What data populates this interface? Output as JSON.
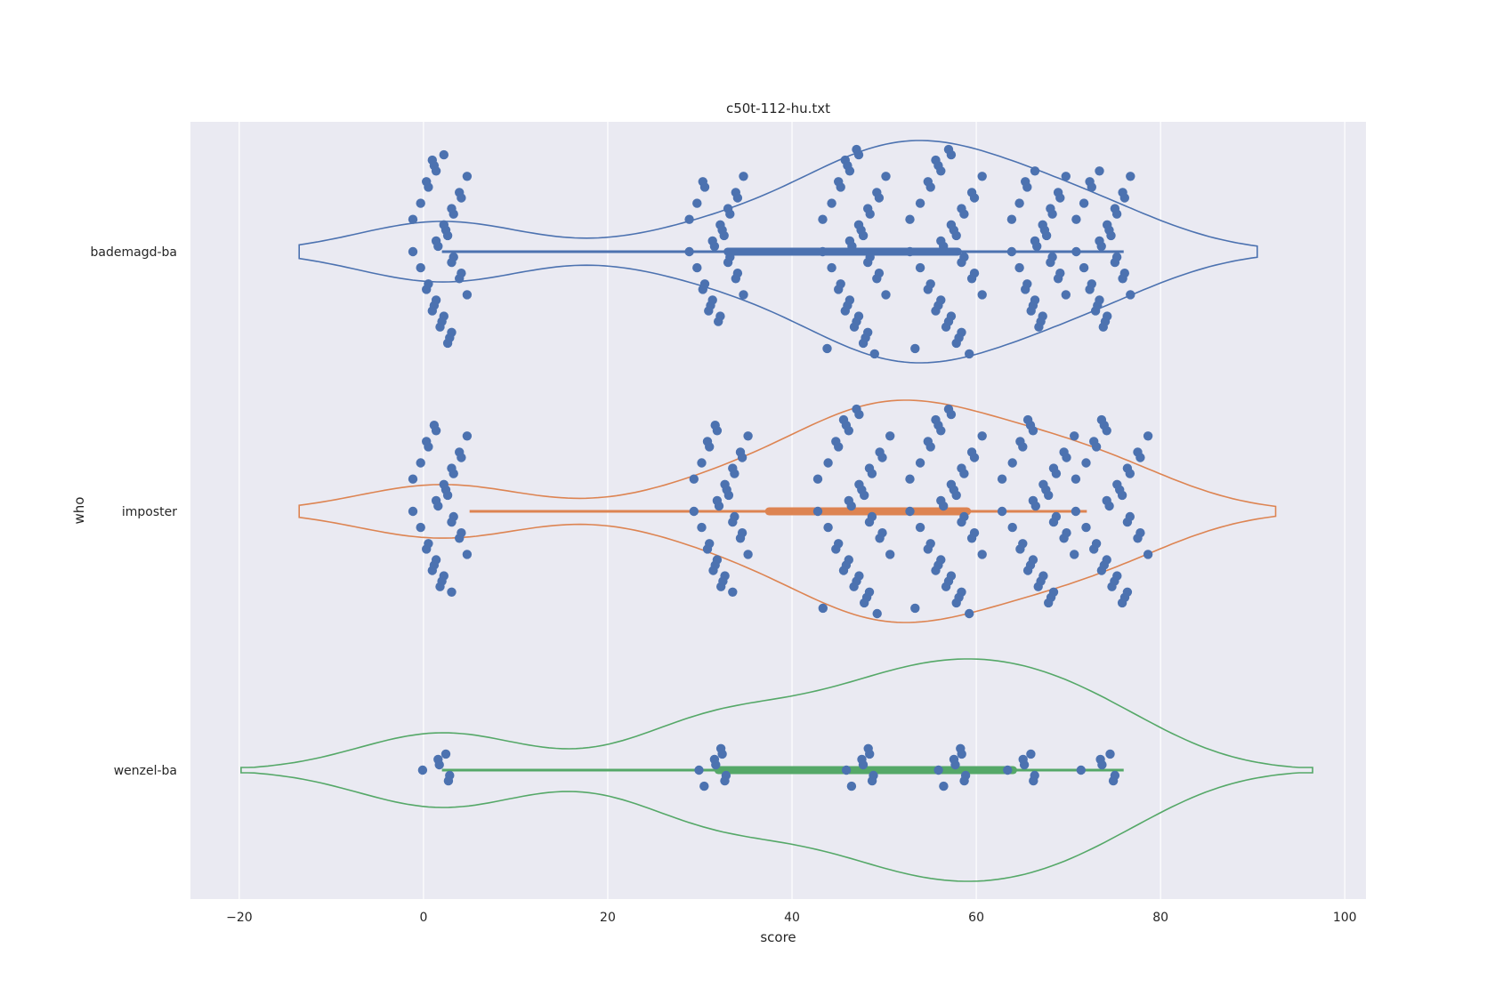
{
  "chart_data": {
    "type": "violin",
    "title": "c50t-112-hu.txt",
    "xlabel": "score",
    "ylabel": "who",
    "xlim": [
      -25.3,
      102.3
    ],
    "xticks": [
      -20,
      0,
      20,
      40,
      60,
      80,
      100
    ],
    "xtick_labels": [
      "−20",
      "0",
      "20",
      "40",
      "60",
      "80",
      "100"
    ],
    "grid": true,
    "categories": [
      "bademagd-ba",
      "imposter",
      "wenzel-ba"
    ],
    "colors": {
      "bademagd-ba": "#4c72b0",
      "imposter": "#dd8452",
      "wenzel-ba": "#55a868",
      "points": "#4c72b0",
      "plot_bg": "#eaeaf2",
      "grid": "#ffffff"
    },
    "series": [
      {
        "name": "bademagd-ba",
        "violin_extent": [
          -13.5,
          90.5
        ],
        "box": {
          "whisker_low": 2,
          "q1": 33,
          "median": 49,
          "q3": 58,
          "whisker_high": 76
        },
        "clusters": [
          {
            "center": 2,
            "spread": 3,
            "count": 36
          },
          {
            "center": 32,
            "spread": 3,
            "count": 28
          },
          {
            "center": 47,
            "spread": 3.5,
            "count": 70
          },
          {
            "center": 57,
            "spread": 4,
            "count": 70
          },
          {
            "center": 67,
            "spread": 3,
            "count": 30
          },
          {
            "center": 74,
            "spread": 3,
            "count": 30
          }
        ]
      },
      {
        "name": "imposter",
        "violin_extent": [
          -13.5,
          92.5
        ],
        "box": {
          "whisker_low": 5,
          "q1": 37.5,
          "median": 47,
          "q3": 59,
          "whisker_high": 72
        },
        "clusters": [
          {
            "center": 2,
            "spread": 3,
            "count": 32
          },
          {
            "center": 32.5,
            "spread": 3,
            "count": 32
          },
          {
            "center": 47,
            "spread": 4,
            "count": 80
          },
          {
            "center": 57,
            "spread": 4,
            "count": 60
          },
          {
            "center": 67,
            "spread": 4,
            "count": 35
          },
          {
            "center": 75,
            "spread": 4,
            "count": 35
          }
        ]
      },
      {
        "name": "wenzel-ba",
        "violin_extent": [
          -19.8,
          96.5
        ],
        "box": {
          "whisker_low": 2,
          "q1": 32,
          "median": 48,
          "q3": 64,
          "whisker_high": 76
        },
        "clusters": [
          {
            "center": 2,
            "spread": 2,
            "count": 6
          },
          {
            "center": 32,
            "spread": 2,
            "count": 8
          },
          {
            "center": 48,
            "spread": 2,
            "count": 8
          },
          {
            "center": 58,
            "spread": 2,
            "count": 8
          },
          {
            "center": 65.5,
            "spread": 2,
            "count": 6
          },
          {
            "center": 74,
            "spread": 2.5,
            "count": 6
          }
        ]
      }
    ]
  }
}
